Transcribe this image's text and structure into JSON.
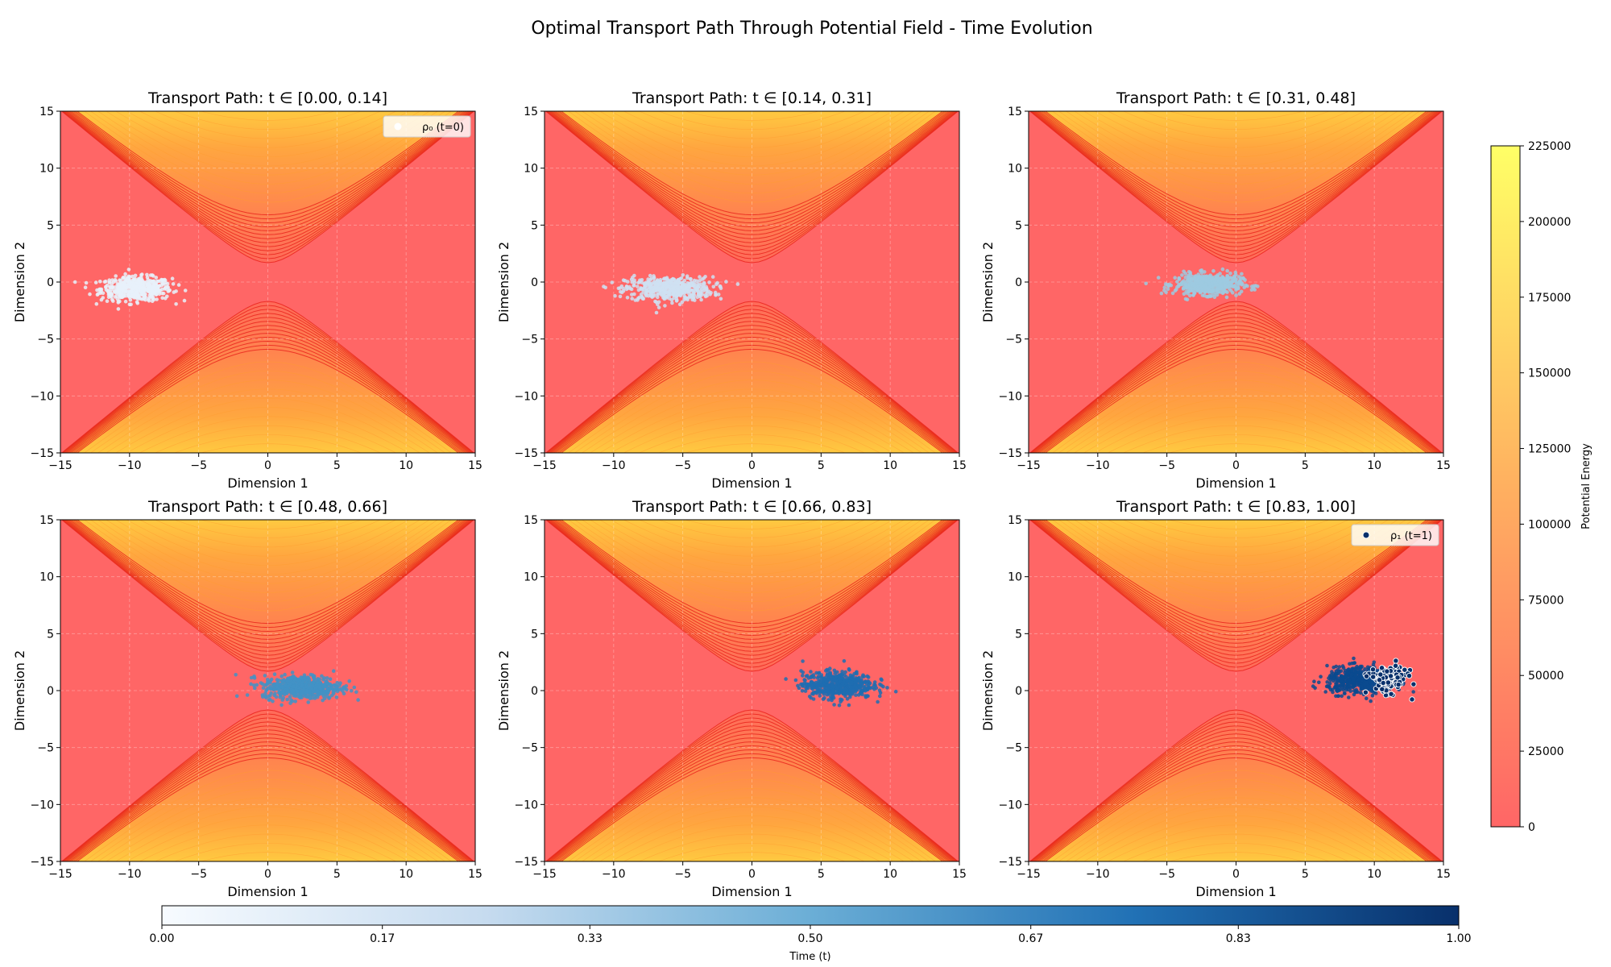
{
  "figure": {
    "title": "Optimal Transport Path Through Potential Field - Time Evolution",
    "potential_colorbar": {
      "label": "Potential Energy",
      "ticks": [
        0,
        25000,
        50000,
        75000,
        100000,
        125000,
        150000,
        175000,
        200000,
        225000
      ],
      "colors": [
        "#ff6666",
        "#ffff66"
      ]
    },
    "time_colorbar": {
      "label": "Time (t)",
      "ticks": [
        "0.00",
        "0.17",
        "0.33",
        "0.50",
        "0.67",
        "0.83",
        "1.00"
      ],
      "colors": [
        "#f7fbff",
        "#c6dbef",
        "#6baed6",
        "#2171b5",
        "#08306b"
      ]
    }
  },
  "chart_data": {
    "type": "scatter",
    "xlabel": "Dimension 1",
    "ylabel": "Dimension 2",
    "xlim": [
      -15,
      15
    ],
    "ylim": [
      -15,
      15
    ],
    "xticks": [
      -15,
      -10,
      -5,
      0,
      5,
      10,
      15
    ],
    "yticks": [
      -15,
      -10,
      -5,
      0,
      5,
      10,
      15
    ],
    "grid": true,
    "background_color": "#ff6666",
    "potential_range": [
      0,
      225000
    ],
    "panels": [
      {
        "title": "Transport Path: t ∈ [0.00, 0.14]",
        "t_range": [
          0.0,
          0.14
        ],
        "cloud_center": [
          -9.5,
          -0.6
        ],
        "cloud_spread": [
          1.7,
          0.8
        ],
        "marker_color": "#e8f1fa",
        "legend": {
          "label": "ρ₀ (t=0)",
          "marker_color": "#ffffff",
          "placement": "upper right"
        }
      },
      {
        "title": "Transport Path: t ∈ [0.14, 0.31]",
        "t_range": [
          0.14,
          0.31
        ],
        "cloud_center": [
          -6.0,
          -0.6
        ],
        "cloud_spread": [
          2.1,
          0.8
        ],
        "marker_color": "#cfe1f2"
      },
      {
        "title": "Transport Path: t ∈ [0.31, 0.48]",
        "t_range": [
          0.31,
          0.48
        ],
        "cloud_center": [
          -2.0,
          -0.2
        ],
        "cloud_spread": [
          1.6,
          0.7
        ],
        "marker_color": "#9ecae1"
      },
      {
        "title": "Transport Path: t ∈ [0.48, 0.66]",
        "t_range": [
          0.48,
          0.66
        ],
        "cloud_center": [
          2.5,
          0.3
        ],
        "cloud_spread": [
          1.9,
          0.8
        ],
        "marker_color": "#4292c6"
      },
      {
        "title": "Transport Path: t ∈ [0.66, 0.83]",
        "t_range": [
          0.66,
          0.83
        ],
        "cloud_center": [
          6.2,
          0.5
        ],
        "cloud_spread": [
          1.7,
          0.9
        ],
        "marker_color": "#1f6db2"
      },
      {
        "title": "Transport Path: t ∈ [0.83, 1.00]",
        "t_range": [
          0.83,
          1.0
        ],
        "cloud_center": [
          9.0,
          0.9
        ],
        "cloud_spread": [
          1.6,
          0.9
        ],
        "marker_color": "#0b4a8f",
        "final_center": [
          11.0,
          1.0
        ],
        "final_spread": [
          0.9,
          0.9
        ],
        "final_color": "#08306b",
        "legend": {
          "label": "ρ₁ (t=1)",
          "marker_color": "#08306b",
          "placement": "upper right"
        }
      }
    ]
  }
}
